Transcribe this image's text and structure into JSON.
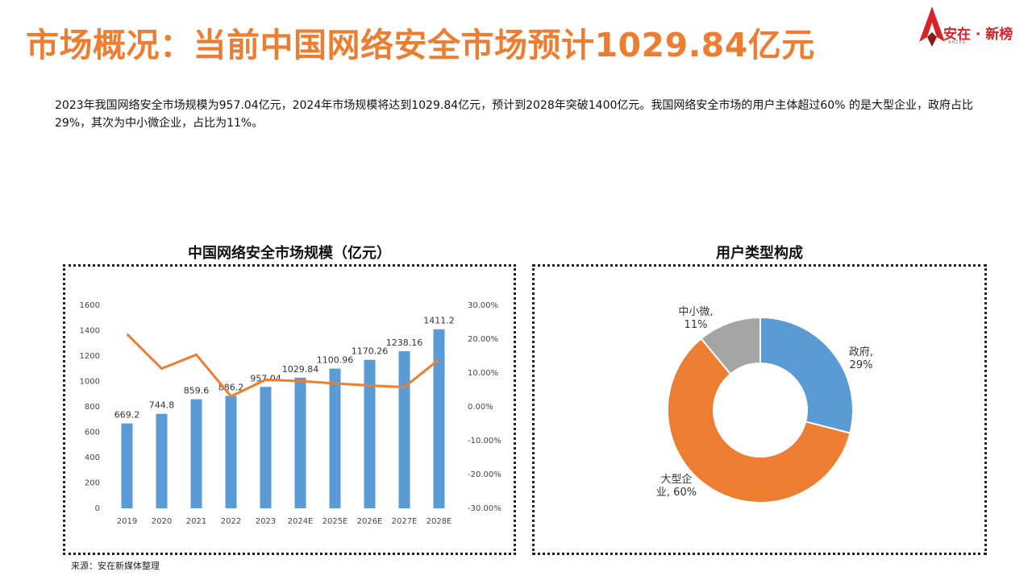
{
  "header": {
    "title": "市场概况：当前中国网络安全市场预计1029.84亿元",
    "logo_text": "安在 · 新榜",
    "logo_sub": "ANZER"
  },
  "description": "2023年我国网络安全市场规模为957.04亿元，2024年市场规模将达到1029.84亿元，预计到2028年突破1400亿元。我国网络安全市场的用户主体超过60% 的是大型企业，政府占比29%，其次为中小微企业，占比为11%。",
  "source": "来源：安在新媒体整理",
  "colors": {
    "accent": "#ed7d31",
    "bar": "#5b9bd5",
    "line": "#ed7d31",
    "gray": "#a5a5a5"
  },
  "chart_data": [
    {
      "type": "bar",
      "title": "中国网络安全市场规模（亿元）",
      "categories": [
        "2019",
        "2020",
        "2021",
        "2022",
        "2023",
        "2024E",
        "2025E",
        "2026E",
        "2027E",
        "2028E"
      ],
      "values": [
        669.2,
        744.8,
        859.6,
        886.2,
        957.04,
        1029.84,
        1100.96,
        1170.26,
        1238.16,
        1411.2
      ],
      "value_labels": [
        "669.2",
        "744.8",
        "859.6",
        "886.2",
        "957.04",
        "1029.84",
        "1100.96",
        "1170.26",
        "1238.16",
        "1411.2"
      ],
      "ylim": [
        0,
        1600
      ],
      "yticks": [
        "0",
        "200",
        "400",
        "600",
        "800",
        "1000",
        "1200",
        "1400",
        "1600"
      ],
      "secondary_line": {
        "values": [
          21.5,
          11.3,
          15.4,
          3.1,
          8.0,
          7.6,
          6.9,
          6.3,
          5.8,
          14.0
        ],
        "ylim": [
          -30,
          30
        ],
        "yticks": [
          "-30.00%",
          "-20.00%",
          "-10.00%",
          "0.00%",
          "10.00%",
          "20.00%",
          "30.00%"
        ]
      },
      "grid": false,
      "legend": "none"
    },
    {
      "type": "pie",
      "title": "用户类型构成",
      "donut": true,
      "labels": [
        "政府",
        "大型企业",
        "中小微"
      ],
      "values": [
        29,
        60,
        11
      ],
      "label_texts": [
        [
          "政府,",
          "29%"
        ],
        [
          "大型企",
          "业, 60%"
        ],
        [
          "中小微,",
          "11%"
        ]
      ],
      "colors": [
        "#5b9bd5",
        "#ed7d31",
        "#a5a5a5"
      ]
    }
  ]
}
